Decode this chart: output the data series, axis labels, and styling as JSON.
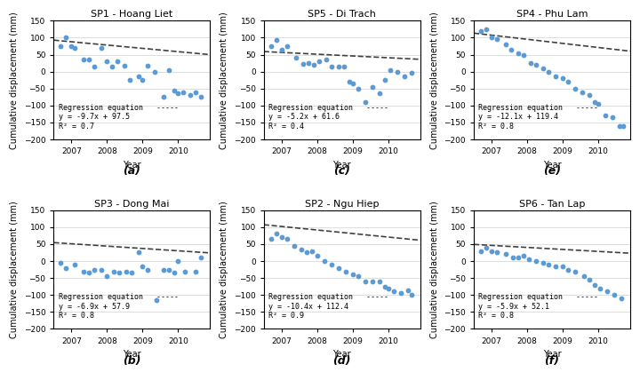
{
  "subplots": [
    {
      "title": "SP1 - Hoang Liet",
      "label": "(a)",
      "eq_line1": "y = -9.7x + 97.5",
      "eq_line2": "R² = 0.7",
      "slope": -9.7,
      "intercept": 97.5,
      "x_ref": 2007.0,
      "scatter_x": [
        2006.7,
        2006.85,
        2007.0,
        2007.1,
        2007.35,
        2007.5,
        2007.65,
        2007.85,
        2008.0,
        2008.15,
        2008.3,
        2008.5,
        2008.65,
        2008.9,
        2009.0,
        2009.15,
        2009.35,
        2009.6,
        2009.75,
        2009.9,
        2010.0,
        2010.15,
        2010.35,
        2010.5,
        2010.65
      ],
      "scatter_y": [
        75,
        100,
        75,
        70,
        35,
        35,
        15,
        70,
        30,
        15,
        30,
        18,
        -25,
        -15,
        -25,
        17,
        0,
        -75,
        5,
        -55,
        -65,
        -60,
        -70,
        -60,
        -75
      ]
    },
    {
      "title": "SP3 - Dong Mai",
      "label": "(c)",
      "eq_line1": "y = -6.9x + 57.9",
      "eq_line2": "R² = 0.8",
      "slope": -6.9,
      "intercept": 57.9,
      "x_ref": 2007.0,
      "scatter_x": [
        2006.7,
        2006.85,
        2007.1,
        2007.35,
        2007.5,
        2007.65,
        2007.85,
        2008.0,
        2008.2,
        2008.35,
        2008.55,
        2008.7,
        2008.9,
        2009.0,
        2009.15,
        2009.4,
        2009.6,
        2009.75,
        2009.9,
        2010.0,
        2010.2,
        2010.5,
        2010.65
      ],
      "scatter_y": [
        -5,
        -20,
        -10,
        -30,
        -35,
        -25,
        -25,
        -45,
        -30,
        -35,
        -30,
        -35,
        25,
        -15,
        -25,
        -115,
        -25,
        -25,
        -35,
        0,
        -30,
        -30,
        10
      ]
    },
    {
      "title": "SP5 - Di Trach",
      "label": "(e)",
      "eq_line1": "y = -5.2x + 61.6",
      "eq_line2": "R² = 0.4",
      "slope": -5.2,
      "intercept": 61.6,
      "x_ref": 2007.0,
      "scatter_x": [
        2006.7,
        2006.85,
        2007.0,
        2007.15,
        2007.4,
        2007.6,
        2007.75,
        2007.9,
        2008.05,
        2008.25,
        2008.4,
        2008.6,
        2008.75,
        2008.9,
        2009.0,
        2009.15,
        2009.35,
        2009.55,
        2009.75,
        2009.9,
        2010.05,
        2010.25,
        2010.45,
        2010.65
      ],
      "scatter_y": [
        75,
        92,
        65,
        75,
        40,
        22,
        25,
        20,
        30,
        35,
        15,
        15,
        15,
        -30,
        -35,
        -50,
        -90,
        -45,
        -65,
        -25,
        5,
        0,
        -15,
        -3
      ]
    },
    {
      "title": "SP2 - Ngu Hiep",
      "label": "(b)",
      "eq_line1": "y = -10.4x + 112.4",
      "eq_line2": "R² = 0.9",
      "slope": -10.4,
      "intercept": 112.4,
      "x_ref": 2007.0,
      "scatter_x": [
        2006.7,
        2006.85,
        2007.0,
        2007.15,
        2007.35,
        2007.55,
        2007.7,
        2007.85,
        2008.0,
        2008.2,
        2008.4,
        2008.6,
        2008.8,
        2009.0,
        2009.15,
        2009.35,
        2009.55,
        2009.75,
        2009.9,
        2010.0,
        2010.15,
        2010.35,
        2010.55,
        2010.65
      ],
      "scatter_y": [
        65,
        80,
        70,
        65,
        45,
        35,
        25,
        30,
        15,
        0,
        -10,
        -20,
        -30,
        -40,
        -45,
        -60,
        -60,
        -60,
        -75,
        -80,
        -90,
        -95,
        -85,
        -100
      ]
    },
    {
      "title": "SP4 - Phu Lam",
      "label": "(d)",
      "eq_line1": "y = -12.1x + 119.4",
      "eq_line2": "R² = 0.8",
      "slope": -12.1,
      "intercept": 119.4,
      "x_ref": 2007.0,
      "scatter_x": [
        2006.7,
        2006.85,
        2007.0,
        2007.15,
        2007.4,
        2007.55,
        2007.75,
        2007.9,
        2008.1,
        2008.25,
        2008.45,
        2008.6,
        2008.8,
        2009.0,
        2009.15,
        2009.35,
        2009.55,
        2009.75,
        2009.9,
        2010.0,
        2010.2,
        2010.4,
        2010.6,
        2010.7
      ],
      "scatter_y": [
        120,
        125,
        100,
        95,
        80,
        65,
        55,
        50,
        25,
        20,
        10,
        0,
        -15,
        -20,
        -30,
        -50,
        -60,
        -70,
        -90,
        -95,
        -130,
        -135,
        -160,
        -160
      ]
    },
    {
      "title": "SP6 - Tan Lap",
      "label": "(f)",
      "eq_line1": "y = -5.9x + 52.1",
      "eq_line2": "R² = 0.8",
      "slope": -5.9,
      "intercept": 52.1,
      "x_ref": 2007.0,
      "scatter_x": [
        2006.7,
        2006.85,
        2007.0,
        2007.15,
        2007.4,
        2007.6,
        2007.75,
        2007.9,
        2008.05,
        2008.25,
        2008.45,
        2008.6,
        2008.8,
        2009.0,
        2009.15,
        2009.35,
        2009.6,
        2009.75,
        2009.9,
        2010.05,
        2010.25,
        2010.45,
        2010.65
      ],
      "scatter_y": [
        30,
        40,
        30,
        25,
        20,
        10,
        10,
        15,
        5,
        0,
        -5,
        -10,
        -15,
        -15,
        -25,
        -30,
        -45,
        -55,
        -70,
        -80,
        -90,
        -100,
        -110
      ]
    }
  ],
  "scatter_color": "#5b9bd5",
  "scatter_marker": "o",
  "scatter_size": 10,
  "line_color": "#404040",
  "line_style": "--",
  "line_width": 1.2,
  "xlim": [
    2006.5,
    2010.9
  ],
  "ylim": [
    -200,
    150
  ],
  "yticks": [
    -200,
    -150,
    -100,
    -50,
    0,
    50,
    100,
    150
  ],
  "xtick_labels": [
    "2007",
    "2008",
    "2009",
    "2010"
  ],
  "xtick_positions": [
    2007,
    2008,
    2009,
    2010
  ],
  "xlabel": "Year",
  "ylabel": "Cumulative displacement (mm)",
  "regression_label": "Regression equation",
  "fig_bg": "#ffffff",
  "axes_bg": "#ffffff",
  "grid_color": "#d0d0d0",
  "title_fontsize": 8,
  "label_fontsize": 7,
  "tick_fontsize": 6.5,
  "annot_fontsize": 7,
  "subplot_label_fontsize": 9
}
